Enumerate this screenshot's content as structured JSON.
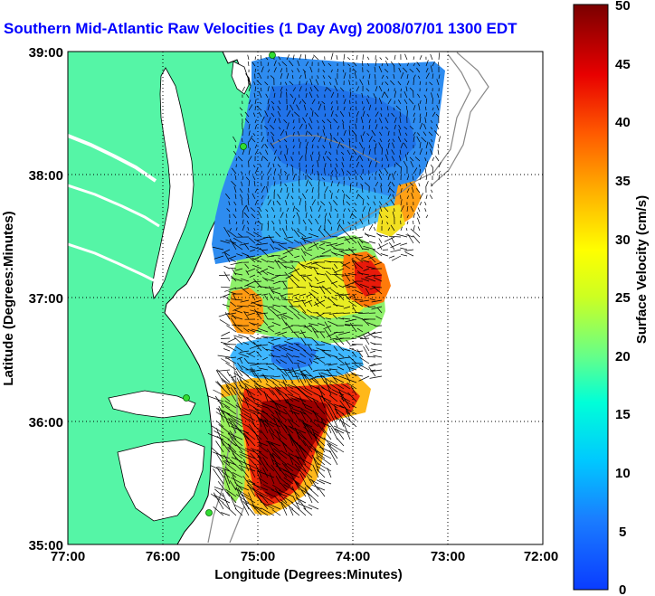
{
  "title": "Southern Mid-Atlantic Raw Velocities (1 Day Avg) 2008/07/01 1300 EDT",
  "x_axis": {
    "label": "Longitude (Degrees:Minutes)",
    "ticks": [
      "77:00",
      "76:00",
      "75:00",
      "74:00",
      "73:00",
      "72:00"
    ],
    "values": [
      -77,
      -76,
      -75,
      -74,
      -73,
      -72
    ]
  },
  "y_axis": {
    "label": "Latitude (Degrees:Minutes)",
    "ticks": [
      "39:00",
      "38:00",
      "37:00",
      "36:00",
      "35:00"
    ],
    "values": [
      39,
      38,
      37,
      36,
      35
    ]
  },
  "colorbar": {
    "label": "Surface Velocity (cm/s)",
    "ticks": [
      "50",
      "45",
      "40",
      "35",
      "30",
      "25",
      "20",
      "15",
      "10",
      "5",
      "0"
    ],
    "min": 0,
    "max": 50,
    "units": "cm/s"
  },
  "colors": {
    "land": "#55f5a6",
    "land_outline": "#000000",
    "title": "#0000ff",
    "vectors": "#000000",
    "stations": "#33dd33",
    "bathymetry": "#888888"
  },
  "map": {
    "lon_range": [
      -77,
      -72
    ],
    "lat_range": [
      35,
      39
    ],
    "grid": "dotted"
  }
}
